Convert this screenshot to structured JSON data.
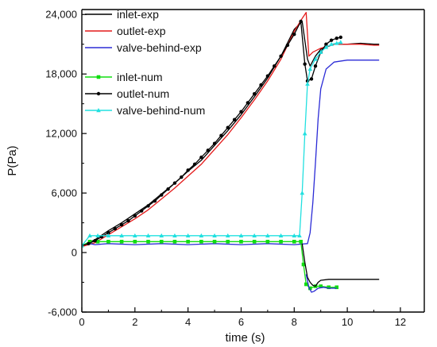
{
  "chart_data": {
    "type": "line",
    "title": "",
    "xlabel": "time (s)",
    "ylabel": "P(Pa)",
    "xlim": [
      0,
      12.9
    ],
    "ylim": [
      -6000,
      24500
    ],
    "x_ticks": [
      0,
      2,
      4,
      6,
      8,
      10,
      12
    ],
    "y_ticks": [
      -6000,
      0,
      6000,
      12000,
      18000,
      24000
    ],
    "x_tick_labels": [
      "0",
      "2",
      "4",
      "6",
      "8",
      "10",
      "12"
    ],
    "y_tick_labels": [
      "-6,000",
      "0",
      "6,000",
      "12,000",
      "18,000",
      "24,000"
    ],
    "grid": false,
    "legend_position": "top-left",
    "series": [
      {
        "name": "inlet-exp",
        "color": "#000000",
        "marker": "none",
        "x": [
          0,
          0.5,
          1,
          1.5,
          2,
          2.5,
          3,
          3.5,
          4,
          4.5,
          5,
          5.5,
          6,
          6.5,
          7,
          7.5,
          8,
          8.3,
          8.5,
          8.6,
          8.8,
          9,
          9.5,
          10,
          10.5,
          11,
          11.2
        ],
        "y": [
          700,
          1300,
          2200,
          3000,
          3900,
          4800,
          5900,
          7000,
          8200,
          9300,
          10800,
          12300,
          13900,
          15700,
          17600,
          19800,
          22500,
          23300,
          19500,
          18800,
          19800,
          20500,
          21000,
          21000,
          21100,
          21000,
          21000
        ]
      },
      {
        "name": "outlet-exp",
        "color": "#e41a1a",
        "marker": "none",
        "x": [
          0,
          0.5,
          1,
          1.5,
          2,
          2.5,
          3,
          3.5,
          4,
          4.5,
          5,
          5.5,
          6,
          6.5,
          7,
          7.5,
          8,
          8.3,
          8.45,
          8.55,
          8.7,
          9,
          9.5,
          10,
          10.5,
          11,
          11.2
        ],
        "y": [
          600,
          1000,
          1800,
          2600,
          3400,
          4300,
          5400,
          6500,
          7700,
          8900,
          10400,
          11900,
          13600,
          15400,
          17300,
          19500,
          22300,
          23600,
          24200,
          19800,
          20200,
          20600,
          21000,
          21000,
          21000,
          20900,
          20900
        ]
      },
      {
        "name": "valve-behind-exp",
        "color": "#2b2bd6",
        "marker": "none",
        "x": [
          0,
          0.3,
          0.5,
          1,
          2,
          3,
          4,
          5,
          6,
          7,
          8,
          8.5,
          8.6,
          8.7,
          8.8,
          8.9,
          9,
          9.2,
          9.5,
          10,
          10.5,
          11,
          11.2
        ],
        "y": [
          800,
          900,
          800,
          900,
          800,
          900,
          800,
          900,
          800,
          900,
          800,
          900,
          2000,
          5000,
          9000,
          13500,
          16500,
          18500,
          19200,
          19400,
          19400,
          19400,
          19400
        ]
      },
      {
        "name": "inlet-num",
        "color": "#11dd11",
        "marker": "square",
        "x": [
          0,
          0.3,
          0.6,
          1,
          1.5,
          2,
          2.5,
          3,
          3.5,
          4,
          4.5,
          5,
          5.5,
          6,
          6.5,
          7,
          7.5,
          8,
          8.25,
          8.35,
          8.45,
          8.6,
          8.8,
          9,
          9.3,
          9.6
        ],
        "y": [
          700,
          1100,
          1100,
          1100,
          1100,
          1100,
          1100,
          1100,
          1100,
          1100,
          1100,
          1100,
          1100,
          1100,
          1100,
          1100,
          1100,
          1100,
          1100,
          -1200,
          -3200,
          -3600,
          -3400,
          -3400,
          -3500,
          -3500
        ]
      },
      {
        "name": "outlet-num",
        "color": "#000000",
        "marker": "circle",
        "x": [
          0,
          0.25,
          0.5,
          0.75,
          1,
          1.25,
          1.5,
          1.75,
          2,
          2.25,
          2.5,
          2.75,
          3,
          3.25,
          3.5,
          3.75,
          4,
          4.25,
          4.5,
          4.75,
          5,
          5.25,
          5.5,
          5.75,
          6,
          6.25,
          6.5,
          6.75,
          7,
          7.25,
          7.5,
          7.75,
          8,
          8.25,
          8.4,
          8.5,
          8.65,
          8.8,
          9,
          9.2,
          9.4,
          9.6,
          9.75
        ],
        "y": [
          700,
          900,
          1200,
          1600,
          2000,
          2400,
          2800,
          3200,
          3700,
          4200,
          4700,
          5200,
          5800,
          6400,
          7000,
          7600,
          8300,
          8900,
          9600,
          10300,
          11000,
          11800,
          12600,
          13400,
          14200,
          15100,
          16000,
          16900,
          17800,
          18800,
          19800,
          20900,
          22000,
          23300,
          19000,
          17300,
          17500,
          18800,
          20200,
          21000,
          21400,
          21600,
          21700
        ]
      },
      {
        "name": "valve-behind-num",
        "color": "#22e0e0",
        "marker": "triangle",
        "x": [
          0,
          0.3,
          0.6,
          1,
          1.5,
          2,
          2.5,
          3,
          3.5,
          4,
          4.5,
          5,
          5.5,
          6,
          6.5,
          7,
          7.5,
          8,
          8.2,
          8.3,
          8.4,
          8.5,
          8.6,
          8.8,
          9,
          9.2,
          9.4,
          9.6,
          9.75
        ],
        "y": [
          700,
          1700,
          1700,
          1700,
          1700,
          1700,
          1700,
          1700,
          1700,
          1700,
          1700,
          1700,
          1700,
          1700,
          1700,
          1700,
          1700,
          1700,
          1700,
          6000,
          12000,
          17000,
          18500,
          19500,
          20200,
          20700,
          21000,
          21100,
          21200
        ]
      },
      {
        "name": "",
        "color": "#000000",
        "marker": "none",
        "x": [
          8.3,
          8.4,
          8.5,
          8.6,
          8.7,
          8.8,
          8.9,
          9,
          9.3,
          9.6,
          10,
          10.4,
          10.8,
          11.2
        ],
        "y": [
          900,
          -1000,
          -2500,
          -3000,
          -3300,
          -3400,
          -3000,
          -2800,
          -2700,
          -2700,
          -2700,
          -2700,
          -2700,
          -2700
        ]
      },
      {
        "name": "",
        "color": "#2b2bd6",
        "marker": "none",
        "x": [
          8.45,
          8.55,
          8.65,
          8.75,
          8.9,
          9.1,
          9.3,
          9.6
        ],
        "y": [
          -2200,
          -3500,
          -4000,
          -3900,
          -3600,
          -3500,
          -3600,
          -3600
        ]
      }
    ]
  }
}
